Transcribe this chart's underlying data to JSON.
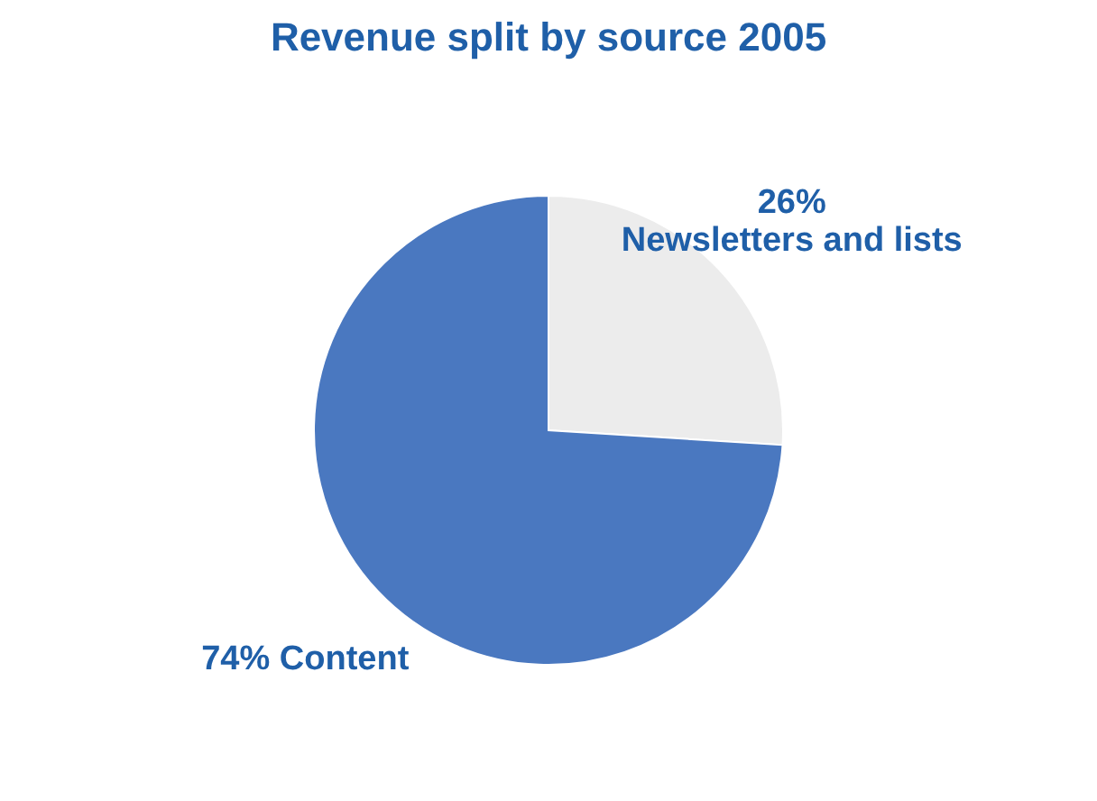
{
  "chart_data": {
    "type": "pie",
    "title": "Revenue split by source 2005",
    "categories": [
      "Newsletters and lists",
      "Content"
    ],
    "values": [
      26,
      74
    ],
    "value_labels": [
      "26%",
      "74%"
    ],
    "colors": [
      "#ececec",
      "#4a78c0"
    ]
  }
}
